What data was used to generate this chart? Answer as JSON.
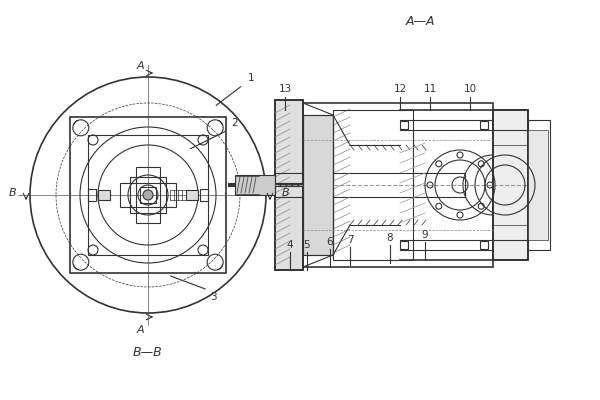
{
  "bg_color": "#ffffff",
  "line_color": "#333333",
  "hatch_color": "#555555",
  "title_AA": "A—A",
  "title_BB": "B—B",
  "label_A_top": "A",
  "label_A_bot": "A",
  "label_B_left": "B",
  "label_B_right": "B",
  "labels_right": [
    "4",
    "5",
    "6",
    "7",
    "8",
    "9",
    "10",
    "11",
    "12",
    "13"
  ],
  "part_numbers": [
    "1",
    "2",
    "3"
  ],
  "font_size_labels": 8,
  "font_size_part": 7.5,
  "font_size_title": 9,
  "lw_main": 0.8,
  "lw_thick": 1.2,
  "lw_thin": 0.5
}
